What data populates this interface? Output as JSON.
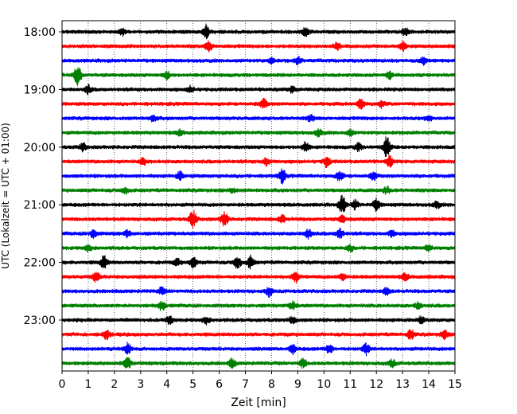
{
  "chart_data": {
    "type": "line",
    "title": "",
    "xlabel": "Zeit  [min]",
    "ylabel": "UTC (Lokalzeit = UTC + 01:00)",
    "xlim": [
      0,
      15
    ],
    "x_ticks": [
      "0",
      "1",
      "2",
      "3",
      "4",
      "5",
      "6",
      "7",
      "8",
      "9",
      "10",
      "11",
      "12",
      "13",
      "14",
      "15"
    ],
    "y_ticks": [
      "18:00",
      "19:00",
      "20:00",
      "21:00",
      "22:00",
      "23:00"
    ],
    "grid": "vertical dotted lines at each minute",
    "trace_start_times": [
      "18:00",
      "18:15",
      "18:30",
      "18:45",
      "19:00",
      "19:15",
      "19:30",
      "19:45",
      "20:00",
      "20:15",
      "20:30",
      "20:45",
      "21:00",
      "21:15",
      "21:30",
      "21:45",
      "22:00",
      "22:15",
      "22:30",
      "22:45",
      "23:00",
      "23:15",
      "23:30",
      "23:45"
    ],
    "trace_colors": [
      "#000000",
      "#ff0000",
      "#0000ff",
      "#008000"
    ],
    "series_events": [
      [
        [
          5.5,
          1.8
        ],
        [
          9.3,
          1.1
        ],
        [
          2.3,
          0.8
        ],
        [
          13.1,
          0.9
        ]
      ],
      [
        [
          5.6,
          1.3
        ],
        [
          10.5,
          1.0
        ],
        [
          13.0,
          1.2
        ]
      ],
      [
        [
          9.0,
          0.9
        ],
        [
          13.8,
          0.9
        ],
        [
          8.0,
          0.7
        ]
      ],
      [
        [
          0.6,
          3.0
        ],
        [
          4.0,
          1.0
        ],
        [
          12.5,
          1.0
        ]
      ],
      [
        [
          1.0,
          1.1
        ],
        [
          4.9,
          0.8
        ],
        [
          8.8,
          0.8
        ]
      ],
      [
        [
          7.7,
          1.3
        ],
        [
          11.4,
          1.3
        ],
        [
          12.2,
          0.9
        ]
      ],
      [
        [
          3.5,
          0.8
        ],
        [
          9.5,
          0.8
        ],
        [
          14.0,
          0.7
        ]
      ],
      [
        [
          9.8,
          1.0
        ],
        [
          11.0,
          0.8
        ],
        [
          4.5,
          0.7
        ]
      ],
      [
        [
          0.8,
          1.0
        ],
        [
          9.3,
          1.3
        ],
        [
          12.4,
          3.0
        ],
        [
          11.3,
          1.0
        ]
      ],
      [
        [
          10.1,
          1.4
        ],
        [
          12.5,
          1.4
        ],
        [
          7.8,
          1.0
        ],
        [
          3.1,
          0.8
        ]
      ],
      [
        [
          8.4,
          1.9
        ],
        [
          10.6,
          1.4
        ],
        [
          4.5,
          1.1
        ],
        [
          11.9,
          1.0
        ]
      ],
      [
        [
          2.4,
          0.9
        ],
        [
          12.4,
          0.9
        ],
        [
          6.5,
          0.7
        ]
      ],
      [
        [
          10.7,
          2.6
        ],
        [
          12.0,
          1.6
        ],
        [
          11.2,
          1.2
        ],
        [
          14.3,
          0.9
        ]
      ],
      [
        [
          5.0,
          2.4
        ],
        [
          6.2,
          2.0
        ],
        [
          8.4,
          1.0
        ],
        [
          10.7,
          0.9
        ]
      ],
      [
        [
          1.2,
          1.2
        ],
        [
          9.4,
          1.3
        ],
        [
          10.6,
          1.4
        ],
        [
          12.6,
          0.9
        ],
        [
          2.5,
          0.9
        ]
      ],
      [
        [
          1.0,
          0.8
        ],
        [
          11.0,
          0.8
        ],
        [
          14.0,
          0.8
        ]
      ],
      [
        [
          1.6,
          1.8
        ],
        [
          5.0,
          1.5
        ],
        [
          6.7,
          2.0
        ],
        [
          7.2,
          1.6
        ],
        [
          4.4,
          0.9
        ]
      ],
      [
        [
          8.9,
          1.5
        ],
        [
          1.3,
          1.3
        ],
        [
          10.7,
          1.0
        ],
        [
          13.1,
          1.0
        ]
      ],
      [
        [
          7.9,
          1.2
        ],
        [
          12.4,
          1.0
        ],
        [
          3.8,
          0.9
        ]
      ],
      [
        [
          3.8,
          1.2
        ],
        [
          8.8,
          1.0
        ],
        [
          13.6,
          0.9
        ]
      ],
      [
        [
          4.1,
          1.0
        ],
        [
          5.5,
          0.9
        ],
        [
          8.8,
          0.9
        ],
        [
          13.7,
          0.8
        ]
      ],
      [
        [
          1.7,
          1.2
        ],
        [
          13.3,
          1.4
        ],
        [
          14.6,
          1.2
        ]
      ],
      [
        [
          2.5,
          1.6
        ],
        [
          11.6,
          1.5
        ],
        [
          10.2,
          1.2
        ],
        [
          8.8,
          1.2
        ]
      ],
      [
        [
          2.5,
          1.6
        ],
        [
          6.5,
          1.2
        ],
        [
          9.2,
          1.2
        ],
        [
          12.6,
          1.0
        ]
      ]
    ]
  }
}
